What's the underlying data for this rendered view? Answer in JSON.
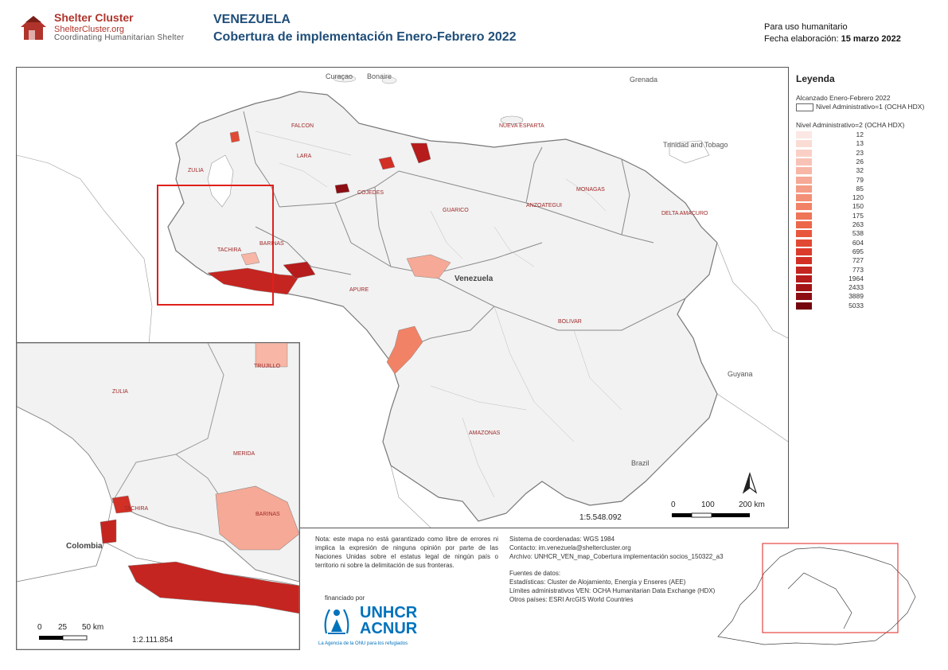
{
  "header": {
    "logo_line1": "Shelter Cluster",
    "logo_line2": "ShelterCluster.org",
    "logo_line3": "Coordinating Humanitarian Shelter",
    "title": "VENEZUELA",
    "subtitle": "Cobertura de implementación Enero-Febrero 2022",
    "humanitarian_use": "Para uso humanitario",
    "date_label": "Fecha elaboración: ",
    "date_value": "15 marzo 2022"
  },
  "legend": {
    "title": "Leyenda",
    "group1": "Alcanzado Enero-Febrero 2022",
    "admin1": "Nivel Administrativo=1 (OCHA HDX)",
    "admin2": "Nivel Administrativo=2 (OCHA HDX)",
    "ramp": [
      {
        "value": "12",
        "color": "#fbe7e3"
      },
      {
        "value": "13",
        "color": "#fbdcd5"
      },
      {
        "value": "23",
        "color": "#fad0c6"
      },
      {
        "value": "26",
        "color": "#f8c3b6"
      },
      {
        "value": "32",
        "color": "#f7b6a6"
      },
      {
        "value": "79",
        "color": "#f6a996"
      },
      {
        "value": "85",
        "color": "#f49c86"
      },
      {
        "value": "120",
        "color": "#f38f76"
      },
      {
        "value": "150",
        "color": "#f18266"
      },
      {
        "value": "175",
        "color": "#ef7557"
      },
      {
        "value": "263",
        "color": "#ec6649"
      },
      {
        "value": "538",
        "color": "#e8573d"
      },
      {
        "value": "604",
        "color": "#e24933"
      },
      {
        "value": "695",
        "color": "#db3b2b"
      },
      {
        "value": "727",
        "color": "#d22f25"
      },
      {
        "value": "773",
        "color": "#c52520"
      },
      {
        "value": "1964",
        "color": "#b51c1b"
      },
      {
        "value": "2433",
        "color": "#a21416"
      },
      {
        "value": "3889",
        "color": "#8c0d12"
      },
      {
        "value": "5033",
        "color": "#75060e"
      }
    ]
  },
  "main_map": {
    "country_labels": {
      "curacao": "Curaçao",
      "bonaire": "Bonaire",
      "grenada": "Grenada",
      "trinidad": "Trinidad and Tobago",
      "guyana": "Guyana",
      "brazil": "Brazil",
      "venezuela": "Venezuela"
    },
    "state_labels": [
      "ZULIA",
      "FALCON",
      "LARA",
      "NUEVA ESPARTA",
      "COJEDES",
      "GUARICO",
      "ANZOATEGUI",
      "MONAGAS",
      "DELTA AMACURO",
      "TACHIRA",
      "BARINAS",
      "APURE",
      "BOLIVAR",
      "AMAZONAS"
    ],
    "scale_ratio": "1:5.548.092",
    "scale_labels": [
      "0",
      "100",
      "200 km"
    ],
    "north": "N"
  },
  "inset_map": {
    "state_labels": [
      "ZULIA",
      "TRUJILLO",
      "MERIDA",
      "TACHIRA",
      "BARINAS"
    ],
    "country_label": "Colombia",
    "scale_ratio": "1:2.111.854",
    "scale_labels": [
      "0",
      "25",
      "50 km"
    ]
  },
  "notes": {
    "disclaimer": "Nota: este mapa no está garantizado como libre de errores ni implica la expresión de ninguna opinión por parte de las Naciones Unidas sobre el estatus legal de ningún país o territorio ni sobre la delimitación de sus fronteras.",
    "funded_by": "financiado por",
    "unhcr": "UNHCR",
    "acnur": "ACNUR",
    "agency_tagline": "La Agencia de la ONU para los refugiados",
    "coords": "Sistema de coordenadas: WGS 1984",
    "contact": "Contacto: im.venezuela@sheltercluster.org",
    "archive": "Archivo: UNHCR_VEN_map_Cobertura implementación socios_150322_a3",
    "sources_title": "Fuentes de datos:",
    "source1": "Estadísticas: Cluster de Alojamiento, Energía y Enseres (AEE)",
    "source2": "Límites administrativos VEN: OCHA Humanitarian Data Exchange (HDX)",
    "source3": "Otros países: ESRI ArcGIS World Countries"
  }
}
